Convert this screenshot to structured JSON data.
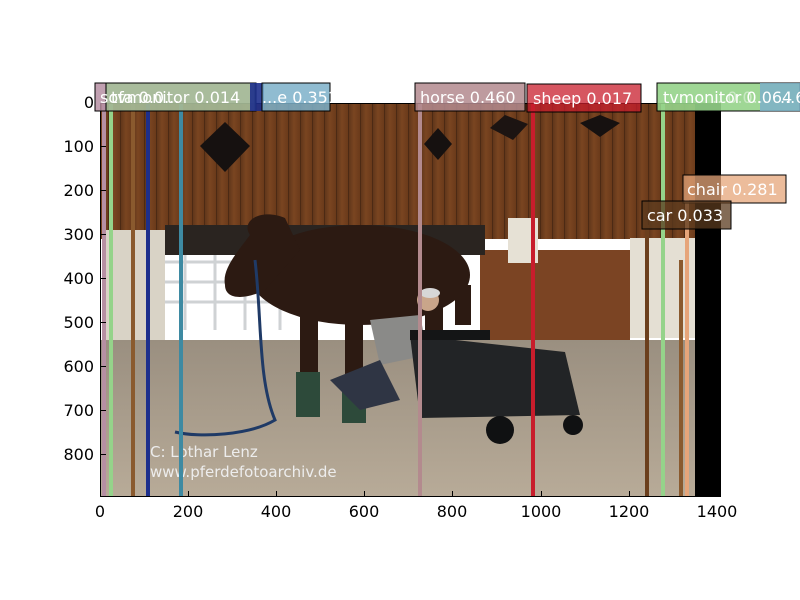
{
  "plot": {
    "x_ticks": [
      "0",
      "200",
      "400",
      "600",
      "800",
      "1000",
      "1200",
      "1400"
    ],
    "y_ticks": [
      "0",
      "100",
      "200",
      "300",
      "400",
      "500",
      "600",
      "700",
      "800"
    ]
  },
  "photo": {
    "watermark_line1": "C: Lothar Lenz",
    "watermark_line2": "www.pferdefotoarchiv.de"
  },
  "detections": {
    "left_stack": [
      "sofa 0.0...",
      "tvmonitor 0.014",
      "...e 0.351"
    ],
    "horse": "horse 0.460",
    "sheep": "sheep 0.017",
    "right_stack": [
      "tvmonitor 0.064",
      "...0.0...",
      "...64"
    ],
    "chair": "chair 0.281",
    "car": "car 0.033"
  },
  "colors": {
    "horse": "#b38a8e",
    "sheep": "#c81d2c",
    "tvmonitor": "#95d38a",
    "chair": "#e6a57a",
    "car": "#5a3a1e",
    "blue_label": "#7db0c9",
    "dark_blue": "#1d2f8c",
    "brown": "#8a5a2e"
  }
}
